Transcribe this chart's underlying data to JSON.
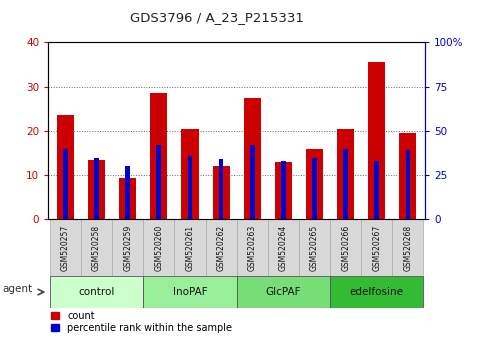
{
  "title": "GDS3796 / A_23_P215331",
  "samples": [
    "GSM520257",
    "GSM520258",
    "GSM520259",
    "GSM520260",
    "GSM520261",
    "GSM520262",
    "GSM520263",
    "GSM520264",
    "GSM520265",
    "GSM520266",
    "GSM520267",
    "GSM520268"
  ],
  "counts": [
    23.5,
    13.5,
    9.3,
    28.5,
    20.5,
    12.0,
    27.5,
    13.0,
    16.0,
    20.5,
    35.5,
    19.5
  ],
  "percentiles": [
    40,
    35,
    30,
    42,
    36,
    34,
    42,
    33,
    35,
    40,
    33,
    39
  ],
  "bar_color": "#cc0000",
  "percentile_color": "#0000cc",
  "groups": [
    {
      "label": "control",
      "start": 0,
      "end": 3,
      "color": "#ccffcc"
    },
    {
      "label": "InoPAF",
      "start": 3,
      "end": 6,
      "color": "#99ee99"
    },
    {
      "label": "GlcPAF",
      "start": 6,
      "end": 9,
      "color": "#77dd77"
    },
    {
      "label": "edelfosine",
      "start": 9,
      "end": 12,
      "color": "#33bb33"
    }
  ],
  "ylim_left": [
    0,
    40
  ],
  "ylim_right": [
    0,
    100
  ],
  "yticks_left": [
    0,
    10,
    20,
    30,
    40
  ],
  "yticks_right": [
    0,
    25,
    50,
    75,
    100
  ],
  "yticklabels_right": [
    "0",
    "25",
    "50",
    "75",
    "100%"
  ],
  "bar_width": 0.55,
  "bg_color": "#ffffff",
  "plot_bg": "#ffffff",
  "grid_color": "#666666",
  "left_tick_color": "#cc0000",
  "right_tick_color": "#0000cc",
  "cell_color": "#d8d8d8",
  "cell_edge_color": "#aaaaaa"
}
